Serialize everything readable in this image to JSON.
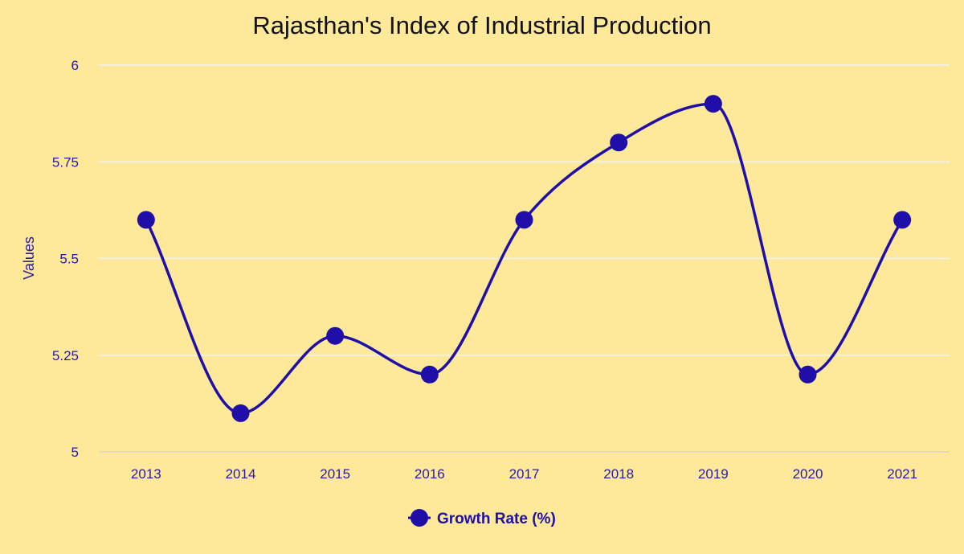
{
  "chart_data": {
    "type": "line",
    "title": "Rajasthan's Index of Industrial Production",
    "xlabel": "",
    "ylabel": "Values",
    "categories": [
      "2013",
      "2014",
      "2015",
      "2016",
      "2017",
      "2018",
      "2019",
      "2020",
      "2021"
    ],
    "series": [
      {
        "name": "Growth Rate (%)",
        "values": [
          5.6,
          5.1,
          5.3,
          5.2,
          5.6,
          5.8,
          5.9,
          5.2,
          5.6
        ]
      }
    ],
    "ylim": [
      5,
      6
    ],
    "yticks": [
      "5",
      "5.25",
      "5.5",
      "5.75",
      "6"
    ],
    "grid": true,
    "legend": "bottom-center",
    "colors": {
      "background": "#fee899",
      "series": "#1f0fa8",
      "grid": "#f3f1dc",
      "text": "#2a1a9e",
      "title": "#111111"
    }
  }
}
